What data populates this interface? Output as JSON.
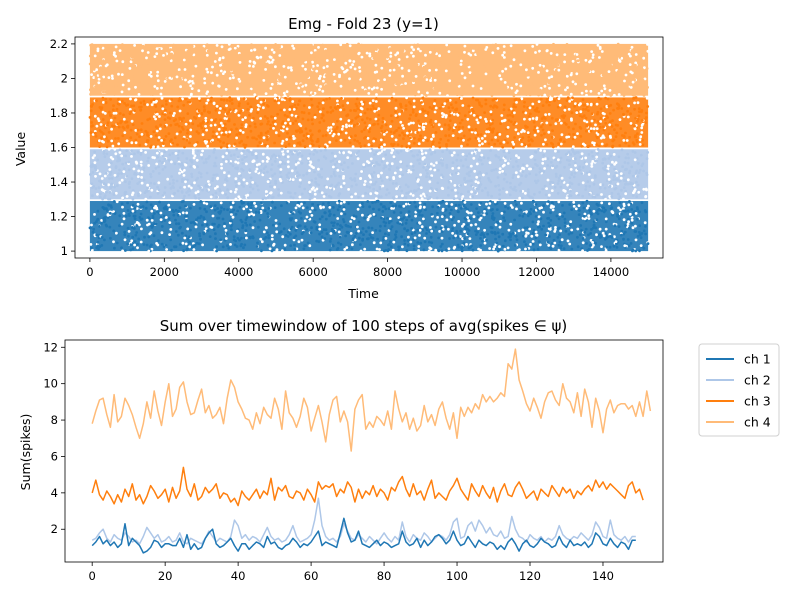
{
  "chart_data": [
    {
      "type": "scatter",
      "title": "Emg - Fold 23 (y=1)",
      "xlabel": "Time",
      "ylabel": "Value",
      "xlim": [
        -400,
        15400
      ],
      "ylim": [
        0.96,
        2.24
      ],
      "xticks": [
        0,
        2000,
        4000,
        6000,
        8000,
        10000,
        12000,
        14000
      ],
      "yticks": [
        1.0,
        1.2,
        1.4,
        1.6,
        1.8,
        2.0,
        2.2
      ],
      "x_range": [
        0,
        15000
      ],
      "grid": false,
      "series": [
        {
          "color": "#1f77b4",
          "y_range": [
            1.0,
            1.29
          ]
        },
        {
          "color": "#aec7e8",
          "y_range": [
            1.3,
            1.59
          ]
        },
        {
          "color": "#ff7f0e",
          "y_range": [
            1.6,
            1.89
          ]
        },
        {
          "color": "#ffbb78",
          "y_range": [
            1.9,
            2.2
          ]
        }
      ]
    },
    {
      "type": "line",
      "title": "Sum over timewindow of 100 steps of avg(spikes ∈ ψ)",
      "xlabel": "",
      "ylabel": "Sum(spikes)",
      "xlim": [
        -7.45,
        156.45
      ],
      "ylim": [
        0.2,
        12.4
      ],
      "xticks": [
        0,
        20,
        40,
        60,
        80,
        100,
        120,
        140
      ],
      "yticks": [
        2,
        4,
        6,
        8,
        10,
        12
      ],
      "grid": false,
      "legend": "outside-right",
      "series": [
        {
          "name": "ch 1",
          "color": "#1f77b4",
          "values": [
            1.1,
            1.3,
            1.6,
            1.2,
            1.4,
            1.1,
            1.3,
            1.0,
            1.2,
            2.3,
            1.1,
            1.5,
            1.3,
            1.1,
            0.7,
            0.8,
            1.0,
            1.4,
            1.3,
            1.0,
            1.2,
            1.2,
            1.1,
            1.1,
            1.5,
            1.0,
            1.7,
            0.9,
            1.2,
            0.9,
            1.0,
            1.5,
            1.8,
            2.0,
            1.2,
            1.0,
            1.1,
            1.3,
            1.5,
            1.1,
            0.8,
            1.2,
            1.2,
            0.9,
            1.1,
            1.3,
            1.2,
            1.0,
            1.6,
            1.2,
            1.3,
            1.0,
            0.9,
            1.1,
            1.2,
            1.5,
            1.3,
            1.0,
            1.2,
            1.1,
            1.3,
            1.6,
            1.9,
            1.1,
            1.3,
            1.2,
            1.1,
            1.0,
            1.8,
            2.6,
            1.8,
            1.3,
            1.4,
            1.9,
            1.2,
            1.1,
            1.0,
            1.2,
            1.4,
            1.1,
            1.3,
            1.2,
            1.0,
            1.1,
            1.2,
            1.9,
            1.3,
            1.1,
            1.2,
            1.5,
            1.0,
            1.4,
            1.1,
            1.3,
            1.6,
            1.7,
            1.5,
            1.2,
            1.4,
            1.9,
            1.4,
            1.1,
            1.2,
            1.6,
            1.3,
            1.0,
            1.4,
            1.2,
            1.1,
            1.3,
            1.2,
            0.9,
            1.1,
            0.9,
            1.3,
            1.5,
            1.2,
            0.8,
            1.2,
            1.4,
            1.1,
            1.0,
            1.2,
            1.5,
            1.3,
            1.2,
            1.0,
            1.1,
            1.6,
            1.2,
            1.0,
            1.4,
            1.1,
            1.2,
            1.1,
            1.3,
            1.0,
            1.2,
            1.8,
            1.6,
            1.2,
            1.1,
            1.5,
            1.2,
            1.0,
            1.3,
            1.2,
            0.9,
            1.4,
            1.4
          ]
        },
        {
          "name": "ch 2",
          "color": "#aec7e8",
          "values": [
            1.4,
            1.5,
            1.8,
            2.0,
            1.5,
            1.3,
            1.7,
            1.5,
            1.4,
            1.8,
            1.6,
            1.3,
            1.4,
            1.2,
            1.6,
            2.1,
            1.8,
            1.5,
            1.7,
            1.3,
            1.4,
            1.6,
            1.3,
            1.4,
            1.8,
            1.3,
            1.2,
            1.5,
            1.4,
            1.3,
            1.2,
            1.5,
            1.9,
            1.6,
            1.3,
            1.5,
            1.4,
            1.3,
            1.6,
            2.5,
            2.2,
            1.5,
            1.7,
            1.4,
            1.6,
            1.5,
            1.3,
            1.7,
            2.1,
            1.6,
            1.4,
            1.5,
            1.3,
            1.4,
            1.7,
            2.2,
            1.6,
            1.3,
            1.4,
            1.5,
            1.7,
            2.5,
            3.7,
            2.2,
            1.6,
            1.4,
            1.5,
            1.3,
            1.6,
            2.3,
            1.9,
            1.5,
            1.4,
            1.7,
            1.5,
            1.3,
            1.6,
            1.4,
            1.2,
            1.5,
            1.8,
            1.5,
            1.3,
            1.6,
            1.4,
            2.4,
            1.6,
            1.3,
            1.7,
            1.5,
            1.4,
            1.8,
            1.6,
            1.3,
            1.5,
            1.7,
            1.6,
            1.4,
            1.7,
            2.4,
            2.6,
            1.5,
            1.6,
            2.2,
            2.4,
            1.9,
            2.5,
            2.2,
            1.8,
            2.1,
            1.7,
            1.6,
            1.9,
            1.5,
            1.6,
            2.7,
            2.0,
            1.6,
            1.5,
            1.3,
            1.7,
            1.5,
            1.4,
            1.6,
            1.3,
            1.5,
            1.4,
            1.6,
            2.2,
            1.7,
            1.5,
            1.4,
            1.6,
            1.5,
            1.8,
            1.6,
            1.4,
            1.7,
            2.4,
            2.1,
            1.6,
            1.5,
            2.5,
            1.7,
            1.5,
            1.4,
            1.6,
            1.3,
            1.6,
            1.6
          ]
        },
        {
          "name": "ch 3",
          "color": "#ff7f0e",
          "values": [
            4.0,
            4.7,
            3.9,
            3.6,
            4.1,
            3.8,
            3.4,
            3.9,
            3.5,
            4.2,
            3.8,
            4.5,
            3.6,
            3.9,
            3.4,
            3.8,
            4.4,
            4.1,
            3.7,
            3.9,
            4.2,
            3.5,
            4.3,
            3.7,
            4.1,
            5.4,
            4.2,
            3.8,
            4.5,
            3.6,
            3.8,
            4.3,
            4.0,
            4.2,
            4.5,
            3.7,
            4.0,
            3.9,
            3.5,
            3.7,
            3.3,
            4.1,
            3.8,
            3.6,
            3.9,
            4.2,
            3.7,
            4.1,
            3.9,
            4.8,
            3.6,
            4.3,
            4.1,
            4.4,
            3.8,
            3.7,
            4.1,
            4.0,
            3.6,
            4.2,
            3.9,
            3.5,
            4.6,
            4.2,
            4.4,
            4.3,
            4.5,
            3.8,
            4.2,
            4.0,
            4.6,
            4.3,
            3.5,
            4.2,
            3.7,
            4.1,
            3.9,
            4.4,
            3.8,
            4.2,
            4.0,
            3.6,
            4.3,
            4.1,
            4.6,
            4.9,
            4.2,
            3.8,
            4.5,
            3.9,
            4.1,
            3.6,
            4.2,
            4.7,
            3.7,
            4.0,
            3.8,
            3.6,
            4.1,
            4.4,
            4.8,
            4.2,
            3.9,
            3.6,
            4.5,
            4.1,
            3.8,
            4.4,
            4.0,
            3.7,
            4.3,
            3.5,
            4.1,
            4.5,
            3.9,
            3.8,
            4.3,
            4.6,
            4.2,
            3.7,
            3.9,
            4.1,
            3.6,
            4.2,
            4.0,
            3.8,
            4.4,
            4.1,
            3.8,
            4.3,
            4.0,
            4.2,
            3.7,
            4.1,
            3.9,
            4.2,
            4.4,
            4.1,
            4.7,
            4.3,
            4.6,
            4.2,
            4.5,
            4.3,
            4.1,
            3.9,
            3.7,
            4.4,
            4.6,
            4.0,
            4.2,
            3.6
          ]
        },
        {
          "name": "ch 4",
          "color": "#ffbb78",
          "values": [
            7.8,
            8.5,
            9.1,
            9.2,
            8.3,
            7.6,
            9.4,
            7.9,
            8.2,
            9.2,
            8.8,
            8.3,
            7.6,
            7.0,
            7.8,
            9.0,
            8.1,
            9.6,
            8.5,
            7.7,
            9.0,
            10.0,
            8.2,
            8.6,
            9.8,
            10.1,
            9.0,
            8.3,
            8.4,
            9.1,
            9.7,
            8.4,
            8.8,
            8.1,
            8.3,
            8.7,
            7.8,
            9.2,
            10.2,
            9.8,
            9.0,
            8.6,
            8.1,
            8.0,
            7.5,
            8.4,
            7.8,
            8.7,
            8.3,
            8.1,
            9.2,
            8.6,
            7.5,
            9.6,
            8.4,
            8.1,
            7.6,
            8.2,
            9.2,
            8.7,
            7.4,
            8.1,
            8.8,
            7.9,
            6.8,
            8.3,
            9.1,
            9.3,
            7.9,
            8.5,
            7.9,
            6.3,
            8.6,
            9.1,
            9.4,
            7.5,
            7.9,
            7.6,
            8.2,
            8.0,
            7.7,
            8.5,
            7.5,
            9.6,
            8.6,
            7.9,
            8.4,
            7.5,
            8.1,
            7.4,
            7.7,
            8.8,
            7.9,
            8.3,
            7.7,
            8.6,
            9.0,
            8.1,
            7.5,
            8.4,
            7.0,
            8.7,
            8.2,
            8.7,
            8.4,
            8.9,
            8.6,
            9.4,
            9.0,
            9.3,
            9.0,
            9.2,
            9.5,
            9.3,
            11.1,
            10.8,
            11.9,
            10.2,
            9.6,
            8.9,
            8.5,
            9.2,
            8.7,
            8.1,
            9.0,
            9.5,
            9.6,
            9.1,
            8.8,
            10.0,
            9.2,
            9.0,
            8.4,
            9.5,
            8.2,
            9.7,
            9.0,
            7.6,
            9.2,
            8.5,
            7.3,
            8.6,
            9.1,
            8.4,
            8.8,
            8.9,
            8.9,
            8.6,
            8.8,
            8.2,
            9.0,
            8.2,
            9.6,
            8.5
          ]
        }
      ]
    }
  ]
}
